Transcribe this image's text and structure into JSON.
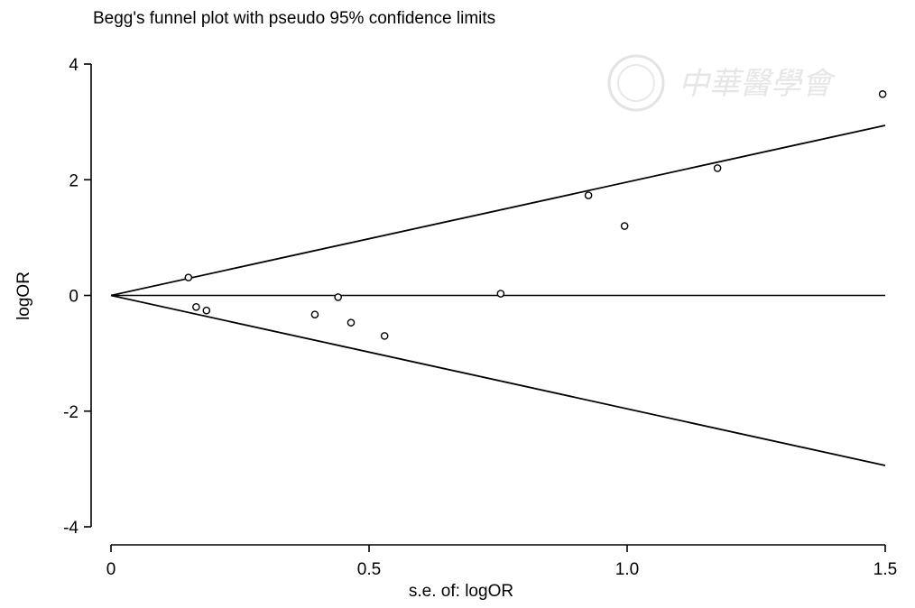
{
  "chart_data": {
    "type": "scatter",
    "title": "Begg's funnel plot with pseudo 95% confidence limits",
    "xlabel": "s.e. of: logOR",
    "ylabel": "logOR",
    "xlim": [
      0,
      1.5
    ],
    "ylim": [
      -4,
      4
    ],
    "xticks": [
      0,
      0.5,
      1.0,
      1.5
    ],
    "xtick_labels": [
      "0",
      "0.5",
      "1.0",
      "1.5"
    ],
    "yticks": [
      4,
      2,
      0,
      -2,
      -4
    ],
    "ytick_labels": [
      "4",
      "2",
      "0",
      "-2",
      "-4"
    ],
    "grid": false,
    "series": [
      {
        "type": "scatter",
        "marker": "hollow-circle",
        "x": [
          0.15,
          0.165,
          0.185,
          0.395,
          0.44,
          0.465,
          0.53,
          0.755,
          0.925,
          0.995,
          1.175,
          1.495
        ],
        "y": [
          0.31,
          -0.2,
          -0.26,
          -0.33,
          -0.03,
          -0.47,
          -0.7,
          0.03,
          1.73,
          1.2,
          2.2,
          3.48
        ]
      }
    ],
    "reference_lines": {
      "null_line_y": 0,
      "pseudo_ci_multiplier": 1.96,
      "x_end": 1.5
    }
  },
  "watermark": {
    "text": "中華醫學會"
  }
}
